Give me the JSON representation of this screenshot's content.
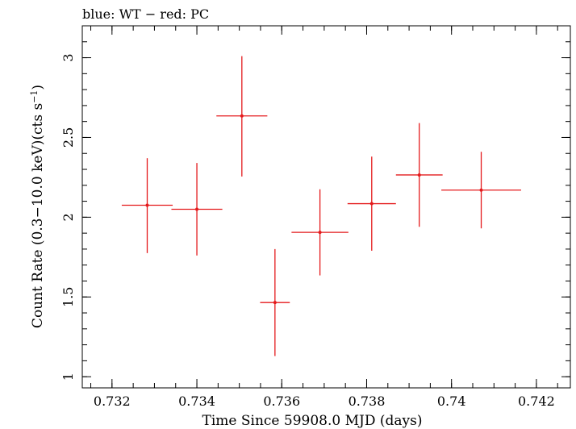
{
  "chart_data": {
    "type": "scatter",
    "title": "blue: WT − red: PC",
    "xlabel": "Time Since 59908.0 MJD (days)",
    "ylabel_main": "Count Rate (0.3−10.0 keV)(cts s",
    "ylabel_sup": "−1",
    "ylabel_close": ")",
    "xlim": [
      0.7313,
      0.7428
    ],
    "ylim": [
      0.93,
      3.2
    ],
    "x_ticks": [
      0.732,
      0.734,
      0.736,
      0.738,
      0.74,
      0.742
    ],
    "x_tick_labels": [
      "0.732",
      "0.734",
      "0.736",
      "0.738",
      "0.74",
      "0.742"
    ],
    "y_ticks": [
      1,
      1.5,
      2,
      2.5,
      3
    ],
    "y_tick_labels": [
      "1",
      "1.5",
      "2",
      "2.5",
      "3"
    ],
    "x_minor_step": 0.0005,
    "y_minor_step": 0.1,
    "grid": false,
    "legend": "none",
    "series": [
      {
        "color": "#e41a1c",
        "points": [
          {
            "x": 0.73283,
            "y": 2.075,
            "xerr": 0.0006,
            "yerr_low": 0.3,
            "yerr_high": 0.295
          },
          {
            "x": 0.734,
            "y": 2.05,
            "xerr": 0.0006,
            "yerr_low": 0.29,
            "yerr_high": 0.29
          },
          {
            "x": 0.73506,
            "y": 2.635,
            "xerr": 0.0006,
            "yerr_low": 0.38,
            "yerr_high": 0.375
          },
          {
            "x": 0.73584,
            "y": 1.465,
            "xerr": 0.00035,
            "yerr_low": 0.335,
            "yerr_high": 0.335
          },
          {
            "x": 0.7369,
            "y": 1.905,
            "xerr": 0.00067,
            "yerr_low": 0.27,
            "yerr_high": 0.27
          },
          {
            "x": 0.73812,
            "y": 2.085,
            "xerr": 0.00057,
            "yerr_low": 0.295,
            "yerr_high": 0.295
          },
          {
            "x": 0.73924,
            "y": 2.265,
            "xerr": 0.00055,
            "yerr_low": 0.325,
            "yerr_high": 0.325
          },
          {
            "x": 0.7407,
            "y": 2.17,
            "xerr": 0.00094,
            "yerr_low": 0.24,
            "yerr_high": 0.24
          }
        ]
      }
    ]
  }
}
